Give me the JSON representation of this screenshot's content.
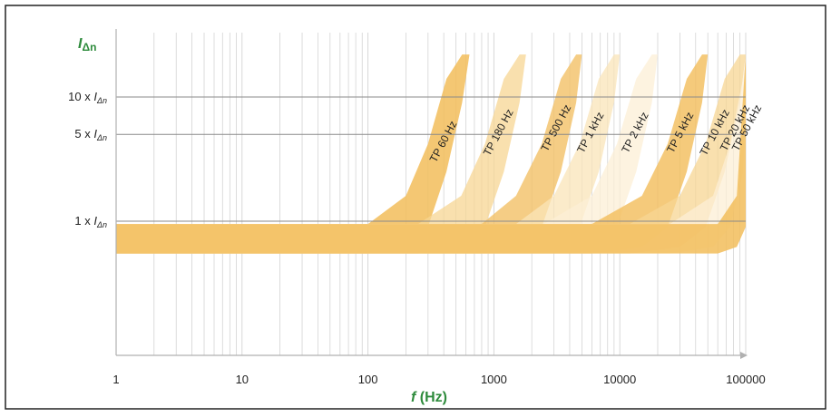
{
  "chart_data": {
    "type": "area",
    "x_scale": "log",
    "y_scale": "log",
    "xlim": [
      1,
      100000
    ],
    "ylim": [
      0.25,
      25
    ],
    "grid": "vertical minor log gridlines; horizontal reference lines at 1, 5 and 10",
    "y_axis_label": {
      "main": "I",
      "subscript": "Δn"
    },
    "x_axis_label": {
      "main": "f",
      "unit": "(Hz)"
    },
    "x_ticks": [
      {
        "value": 1,
        "label": "1"
      },
      {
        "value": 10,
        "label": "10"
      },
      {
        "value": 100,
        "label": "100"
      },
      {
        "value": 1000,
        "label": "1000"
      },
      {
        "value": 10000,
        "label": "10000"
      },
      {
        "value": 100000,
        "label": "100000"
      }
    ],
    "y_reference_lines": [
      {
        "value": 10,
        "label_prefix": "10 x ",
        "label_var": "I",
        "label_sub": "Δn"
      },
      {
        "value": 5,
        "label_prefix": "5 x ",
        "label_var": "I",
        "label_sub": "Δn"
      },
      {
        "value": 1,
        "label_prefix": "1 x ",
        "label_var": "I",
        "label_sub": "Δn"
      }
    ],
    "series": [
      {
        "name": "TP 60 Hz",
        "knee_hz": 100,
        "color": "#f2bd5a",
        "opacity": 0.85,
        "band": [
          {
            "f": 1,
            "low": 0.55,
            "high": 0.95
          },
          {
            "f": 100,
            "low": 0.55,
            "high": 0.95
          },
          {
            "f": 200,
            "low": 0.62,
            "high": 1.6
          },
          {
            "f": 300,
            "low": 0.9,
            "high": 4.2
          },
          {
            "f": 420,
            "low": 2.5,
            "high": 14
          },
          {
            "f": 560,
            "low": 9,
            "high": 22
          },
          {
            "f": 640,
            "low": 22,
            "high": 22
          }
        ]
      },
      {
        "name": "TP 180 Hz",
        "knee_hz": 250,
        "color": "#f7d693",
        "opacity": 0.75,
        "band": [
          {
            "f": 1,
            "low": 0.55,
            "high": 0.95
          },
          {
            "f": 250,
            "low": 0.55,
            "high": 0.95
          },
          {
            "f": 550,
            "low": 0.62,
            "high": 1.6
          },
          {
            "f": 850,
            "low": 0.9,
            "high": 4.2
          },
          {
            "f": 1200,
            "low": 2.5,
            "high": 14
          },
          {
            "f": 1600,
            "low": 9,
            "high": 22
          },
          {
            "f": 1800,
            "low": 22,
            "high": 22
          }
        ]
      },
      {
        "name": "TP 500 Hz",
        "knee_hz": 800,
        "color": "#f2c067",
        "opacity": 0.8,
        "band": [
          {
            "f": 1,
            "low": 0.55,
            "high": 0.95
          },
          {
            "f": 800,
            "low": 0.55,
            "high": 0.95
          },
          {
            "f": 1500,
            "low": 0.62,
            "high": 1.6
          },
          {
            "f": 2400,
            "low": 0.9,
            "high": 4.2
          },
          {
            "f": 3400,
            "low": 2.5,
            "high": 14
          },
          {
            "f": 4500,
            "low": 9,
            "high": 22
          },
          {
            "f": 5000,
            "low": 22,
            "high": 22
          }
        ]
      },
      {
        "name": "TP 1 kHz",
        "knee_hz": 1500,
        "color": "#fae4b8",
        "opacity": 0.75,
        "band": [
          {
            "f": 1,
            "low": 0.55,
            "high": 0.95
          },
          {
            "f": 1500,
            "low": 0.55,
            "high": 0.95
          },
          {
            "f": 3000,
            "low": 0.62,
            "high": 1.6
          },
          {
            "f": 4800,
            "low": 0.9,
            "high": 4.2
          },
          {
            "f": 6800,
            "low": 2.5,
            "high": 14
          },
          {
            "f": 9000,
            "low": 9,
            "high": 22
          },
          {
            "f": 10000,
            "low": 22,
            "high": 22
          }
        ]
      },
      {
        "name": "TP 2 kHz",
        "knee_hz": 2500,
        "color": "#fcefd6",
        "opacity": 0.75,
        "band": [
          {
            "f": 1,
            "low": 0.55,
            "high": 0.95
          },
          {
            "f": 2500,
            "low": 0.55,
            "high": 0.95
          },
          {
            "f": 6000,
            "low": 0.62,
            "high": 1.6
          },
          {
            "f": 9500,
            "low": 0.9,
            "high": 4.2
          },
          {
            "f": 13500,
            "low": 2.5,
            "high": 14
          },
          {
            "f": 18000,
            "low": 9,
            "high": 22
          },
          {
            "f": 20000,
            "low": 22,
            "high": 22
          }
        ]
      },
      {
        "name": "TP 5 kHz",
        "knee_hz": 6000,
        "color": "#f2bd5a",
        "opacity": 0.8,
        "band": [
          {
            "f": 1,
            "low": 0.55,
            "high": 0.95
          },
          {
            "f": 6000,
            "low": 0.55,
            "high": 0.95
          },
          {
            "f": 15000,
            "low": 0.62,
            "high": 1.6
          },
          {
            "f": 24000,
            "low": 0.9,
            "high": 4.2
          },
          {
            "f": 34000,
            "low": 2.5,
            "high": 14
          },
          {
            "f": 45000,
            "low": 9,
            "high": 22
          },
          {
            "f": 50000,
            "low": 22,
            "high": 22
          }
        ]
      },
      {
        "name": "TP 10 kHz",
        "knee_hz": 12000,
        "color": "#f7d693",
        "opacity": 0.75,
        "band": [
          {
            "f": 1,
            "low": 0.55,
            "high": 0.95
          },
          {
            "f": 12000,
            "low": 0.55,
            "high": 0.95
          },
          {
            "f": 30000,
            "low": 0.62,
            "high": 1.6
          },
          {
            "f": 48000,
            "low": 0.9,
            "high": 4.2
          },
          {
            "f": 68000,
            "low": 2.5,
            "high": 14
          },
          {
            "f": 90000,
            "low": 9,
            "high": 22
          },
          {
            "f": 100000,
            "low": 22,
            "high": 22
          }
        ]
      },
      {
        "name": "TP 20 kHz",
        "knee_hz": 25000,
        "color": "#fcefd6",
        "opacity": 0.75,
        "band": [
          {
            "f": 1,
            "low": 0.55,
            "high": 0.95
          },
          {
            "f": 25000,
            "low": 0.55,
            "high": 0.95
          },
          {
            "f": 55000,
            "low": 0.62,
            "high": 1.6
          },
          {
            "f": 75000,
            "low": 0.9,
            "high": 4.2
          },
          {
            "f": 95000,
            "low": 2.5,
            "high": 14
          },
          {
            "f": 100000,
            "low": 14,
            "high": 22
          }
        ]
      },
      {
        "name": "TP 50 kHz",
        "knee_hz": 60000,
        "color": "#f2bd5a",
        "opacity": 0.85,
        "band": [
          {
            "f": 1,
            "low": 0.55,
            "high": 0.95
          },
          {
            "f": 60000,
            "low": 0.55,
            "high": 0.95
          },
          {
            "f": 85000,
            "low": 0.62,
            "high": 1.6
          },
          {
            "f": 100000,
            "low": 0.9,
            "high": 22
          }
        ]
      }
    ]
  },
  "colors": {
    "axis_label_green": "#2e8b3c",
    "grid_line": "#d4d4d4",
    "ref_line": "#8a8a8a",
    "frame": "#222222",
    "axis": "#b0b0b0"
  }
}
